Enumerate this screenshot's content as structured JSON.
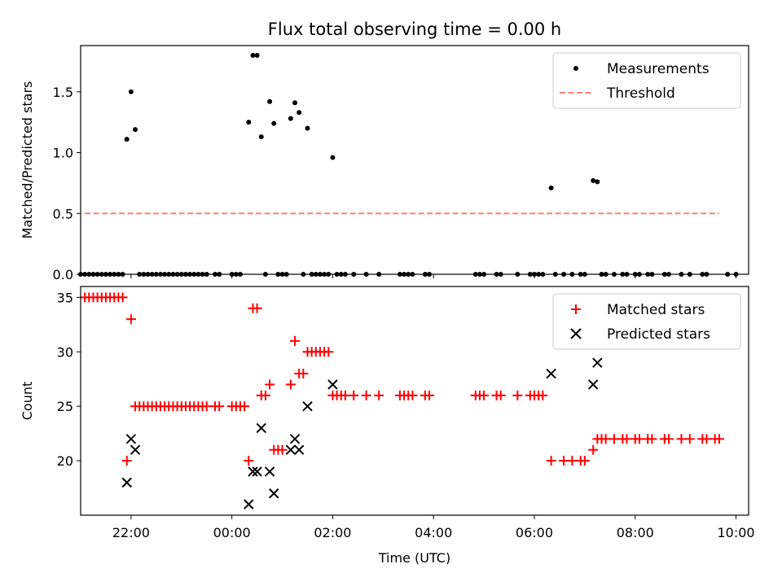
{
  "figure": {
    "title": "Flux total observing time = 0.00 h"
  },
  "chart_data": [
    {
      "type": "scatter",
      "ylabel": "Matched/Predicted stars",
      "xlim": [
        "21:00",
        "10:15"
      ],
      "ylim": [
        0,
        1.88
      ],
      "yticks": [
        "0.0",
        "0.5",
        "1.0",
        "1.5"
      ],
      "grid": false,
      "legend": {
        "placement": "top-right",
        "entries": [
          "Measurements",
          "Threshold"
        ]
      },
      "colors": {
        "Measurements": "#000000",
        "Threshold": "#ff7f7f"
      },
      "series": [
        {
          "name": "Measurements",
          "marker": "dot",
          "points": [
            [
              "21:55",
              1.11
            ],
            [
              "22:00",
              1.5
            ],
            [
              "22:05",
              1.19
            ],
            [
              "00:20",
              1.25
            ],
            [
              "00:25",
              1.8
            ],
            [
              "00:30",
              1.8
            ],
            [
              "00:35",
              1.13
            ],
            [
              "00:45",
              1.42
            ],
            [
              "00:50",
              1.24
            ],
            [
              "01:10",
              1.28
            ],
            [
              "01:15",
              1.41
            ],
            [
              "01:20",
              1.33
            ],
            [
              "01:30",
              1.2
            ],
            [
              "02:00",
              0.96
            ],
            [
              "06:20",
              0.71
            ],
            [
              "07:10",
              0.77
            ],
            [
              "07:15",
              0.76
            ],
            [
              "21:00",
              0
            ],
            [
              "21:05",
              0
            ],
            [
              "21:10",
              0
            ],
            [
              "21:15",
              0
            ],
            [
              "21:20",
              0
            ],
            [
              "21:25",
              0
            ],
            [
              "21:30",
              0
            ],
            [
              "21:35",
              0
            ],
            [
              "21:40",
              0
            ],
            [
              "21:45",
              0
            ],
            [
              "21:50",
              0
            ],
            [
              "22:10",
              0
            ],
            [
              "22:15",
              0
            ],
            [
              "22:20",
              0
            ],
            [
              "22:25",
              0
            ],
            [
              "22:30",
              0
            ],
            [
              "22:35",
              0
            ],
            [
              "22:40",
              0
            ],
            [
              "22:45",
              0
            ],
            [
              "22:50",
              0
            ],
            [
              "22:55",
              0
            ],
            [
              "23:00",
              0
            ],
            [
              "23:05",
              0
            ],
            [
              "23:10",
              0
            ],
            [
              "23:15",
              0
            ],
            [
              "23:20",
              0
            ],
            [
              "23:25",
              0
            ],
            [
              "23:30",
              0
            ],
            [
              "23:40",
              0
            ],
            [
              "23:45",
              0
            ],
            [
              "00:00",
              0
            ],
            [
              "00:05",
              0
            ],
            [
              "00:10",
              0
            ],
            [
              "00:40",
              0
            ],
            [
              "00:55",
              0
            ],
            [
              "01:00",
              0
            ],
            [
              "01:05",
              0
            ],
            [
              "01:25",
              0
            ],
            [
              "01:35",
              0
            ],
            [
              "01:40",
              0
            ],
            [
              "01:45",
              0
            ],
            [
              "01:50",
              0
            ],
            [
              "01:55",
              0
            ],
            [
              "02:05",
              0
            ],
            [
              "02:10",
              0
            ],
            [
              "02:15",
              0
            ],
            [
              "02:25",
              0
            ],
            [
              "02:40",
              0
            ],
            [
              "02:55",
              0
            ],
            [
              "03:20",
              0
            ],
            [
              "03:25",
              0
            ],
            [
              "03:30",
              0
            ],
            [
              "03:35",
              0
            ],
            [
              "03:50",
              0
            ],
            [
              "03:55",
              0
            ],
            [
              "04:50",
              0
            ],
            [
              "04:55",
              0
            ],
            [
              "05:00",
              0
            ],
            [
              "05:15",
              0
            ],
            [
              "05:20",
              0
            ],
            [
              "05:40",
              0
            ],
            [
              "05:55",
              0
            ],
            [
              "06:00",
              0
            ],
            [
              "06:05",
              0
            ],
            [
              "06:10",
              0
            ],
            [
              "06:25",
              0
            ],
            [
              "06:35",
              0
            ],
            [
              "06:45",
              0
            ],
            [
              "06:55",
              0
            ],
            [
              "07:00",
              0
            ],
            [
              "07:20",
              0
            ],
            [
              "07:25",
              0
            ],
            [
              "07:35",
              0
            ],
            [
              "07:45",
              0
            ],
            [
              "07:50",
              0
            ],
            [
              "08:00",
              0
            ],
            [
              "08:05",
              0
            ],
            [
              "08:15",
              0
            ],
            [
              "08:20",
              0
            ],
            [
              "08:35",
              0
            ],
            [
              "08:40",
              0
            ],
            [
              "08:55",
              0
            ],
            [
              "09:05",
              0
            ],
            [
              "09:20",
              0
            ],
            [
              "09:25",
              0
            ],
            [
              "09:50",
              0
            ],
            [
              "10:00",
              0
            ]
          ]
        },
        {
          "name": "Threshold",
          "style": "dashed",
          "x": [
            "21:05",
            "09:40"
          ],
          "y": [
            0.5,
            0.5
          ]
        }
      ]
    },
    {
      "type": "scatter",
      "xlabel": "Time (UTC)",
      "ylabel": "Count",
      "xlim": [
        "21:00",
        "10:15"
      ],
      "ylim": [
        15,
        36
      ],
      "xticks": [
        "22:00",
        "00:00",
        "02:00",
        "04:00",
        "06:00",
        "08:00",
        "10:00"
      ],
      "yticks": [
        "20",
        "25",
        "30",
        "35"
      ],
      "grid": false,
      "legend": {
        "placement": "top-right",
        "entries": [
          "Matched stars",
          "Predicted stars"
        ]
      },
      "colors": {
        "Matched stars": "#ff0000",
        "Predicted stars": "#000000"
      },
      "series": [
        {
          "name": "Matched stars",
          "marker": "plus",
          "points": [
            [
              "21:05",
              35
            ],
            [
              "21:10",
              35
            ],
            [
              "21:15",
              35
            ],
            [
              "21:20",
              35
            ],
            [
              "21:25",
              35
            ],
            [
              "21:30",
              35
            ],
            [
              "21:35",
              35
            ],
            [
              "21:40",
              35
            ],
            [
              "21:45",
              35
            ],
            [
              "21:50",
              35
            ],
            [
              "21:55",
              20
            ],
            [
              "22:00",
              33
            ],
            [
              "22:05",
              25
            ],
            [
              "22:10",
              25
            ],
            [
              "22:15",
              25
            ],
            [
              "22:20",
              25
            ],
            [
              "22:25",
              25
            ],
            [
              "22:30",
              25
            ],
            [
              "22:35",
              25
            ],
            [
              "22:40",
              25
            ],
            [
              "22:45",
              25
            ],
            [
              "22:50",
              25
            ],
            [
              "22:55",
              25
            ],
            [
              "23:00",
              25
            ],
            [
              "23:05",
              25
            ],
            [
              "23:10",
              25
            ],
            [
              "23:15",
              25
            ],
            [
              "23:20",
              25
            ],
            [
              "23:25",
              25
            ],
            [
              "23:30",
              25
            ],
            [
              "23:40",
              25
            ],
            [
              "23:45",
              25
            ],
            [
              "00:00",
              25
            ],
            [
              "00:05",
              25
            ],
            [
              "00:10",
              25
            ],
            [
              "00:15",
              25
            ],
            [
              "00:20",
              20
            ],
            [
              "00:25",
              34
            ],
            [
              "00:30",
              34
            ],
            [
              "00:35",
              26
            ],
            [
              "00:40",
              26
            ],
            [
              "00:45",
              27
            ],
            [
              "00:50",
              21
            ],
            [
              "00:55",
              21
            ],
            [
              "01:00",
              21
            ],
            [
              "01:10",
              27
            ],
            [
              "01:15",
              31
            ],
            [
              "01:20",
              28
            ],
            [
              "01:25",
              28
            ],
            [
              "01:30",
              30
            ],
            [
              "01:35",
              30
            ],
            [
              "01:40",
              30
            ],
            [
              "01:45",
              30
            ],
            [
              "01:50",
              30
            ],
            [
              "01:55",
              30
            ],
            [
              "02:00",
              26
            ],
            [
              "02:05",
              26
            ],
            [
              "02:10",
              26
            ],
            [
              "02:15",
              26
            ],
            [
              "02:25",
              26
            ],
            [
              "02:40",
              26
            ],
            [
              "02:55",
              26
            ],
            [
              "03:20",
              26
            ],
            [
              "03:25",
              26
            ],
            [
              "03:30",
              26
            ],
            [
              "03:35",
              26
            ],
            [
              "03:50",
              26
            ],
            [
              "03:55",
              26
            ],
            [
              "04:50",
              26
            ],
            [
              "04:55",
              26
            ],
            [
              "05:00",
              26
            ],
            [
              "05:15",
              26
            ],
            [
              "05:20",
              26
            ],
            [
              "05:40",
              26
            ],
            [
              "05:55",
              26
            ],
            [
              "06:00",
              26
            ],
            [
              "06:05",
              26
            ],
            [
              "06:10",
              26
            ],
            [
              "06:20",
              20
            ],
            [
              "06:35",
              20
            ],
            [
              "06:45",
              20
            ],
            [
              "06:55",
              20
            ],
            [
              "07:00",
              20
            ],
            [
              "07:10",
              21
            ],
            [
              "07:15",
              22
            ],
            [
              "07:20",
              22
            ],
            [
              "07:25",
              22
            ],
            [
              "07:35",
              22
            ],
            [
              "07:45",
              22
            ],
            [
              "07:50",
              22
            ],
            [
              "08:00",
              22
            ],
            [
              "08:05",
              22
            ],
            [
              "08:15",
              22
            ],
            [
              "08:20",
              22
            ],
            [
              "08:35",
              22
            ],
            [
              "08:40",
              22
            ],
            [
              "08:55",
              22
            ],
            [
              "09:05",
              22
            ],
            [
              "09:20",
              22
            ],
            [
              "09:25",
              22
            ],
            [
              "09:35",
              22
            ],
            [
              "09:40",
              22
            ]
          ]
        },
        {
          "name": "Predicted stars",
          "marker": "x",
          "points": [
            [
              "21:55",
              18
            ],
            [
              "22:00",
              22
            ],
            [
              "22:05",
              21
            ],
            [
              "00:20",
              16
            ],
            [
              "00:25",
              19
            ],
            [
              "00:30",
              19
            ],
            [
              "00:35",
              23
            ],
            [
              "00:45",
              19
            ],
            [
              "00:50",
              17
            ],
            [
              "01:10",
              21
            ],
            [
              "01:15",
              22
            ],
            [
              "01:20",
              21
            ],
            [
              "01:30",
              25
            ],
            [
              "02:00",
              27
            ],
            [
              "06:20",
              28
            ],
            [
              "07:10",
              27
            ],
            [
              "07:15",
              29
            ]
          ]
        }
      ]
    }
  ]
}
